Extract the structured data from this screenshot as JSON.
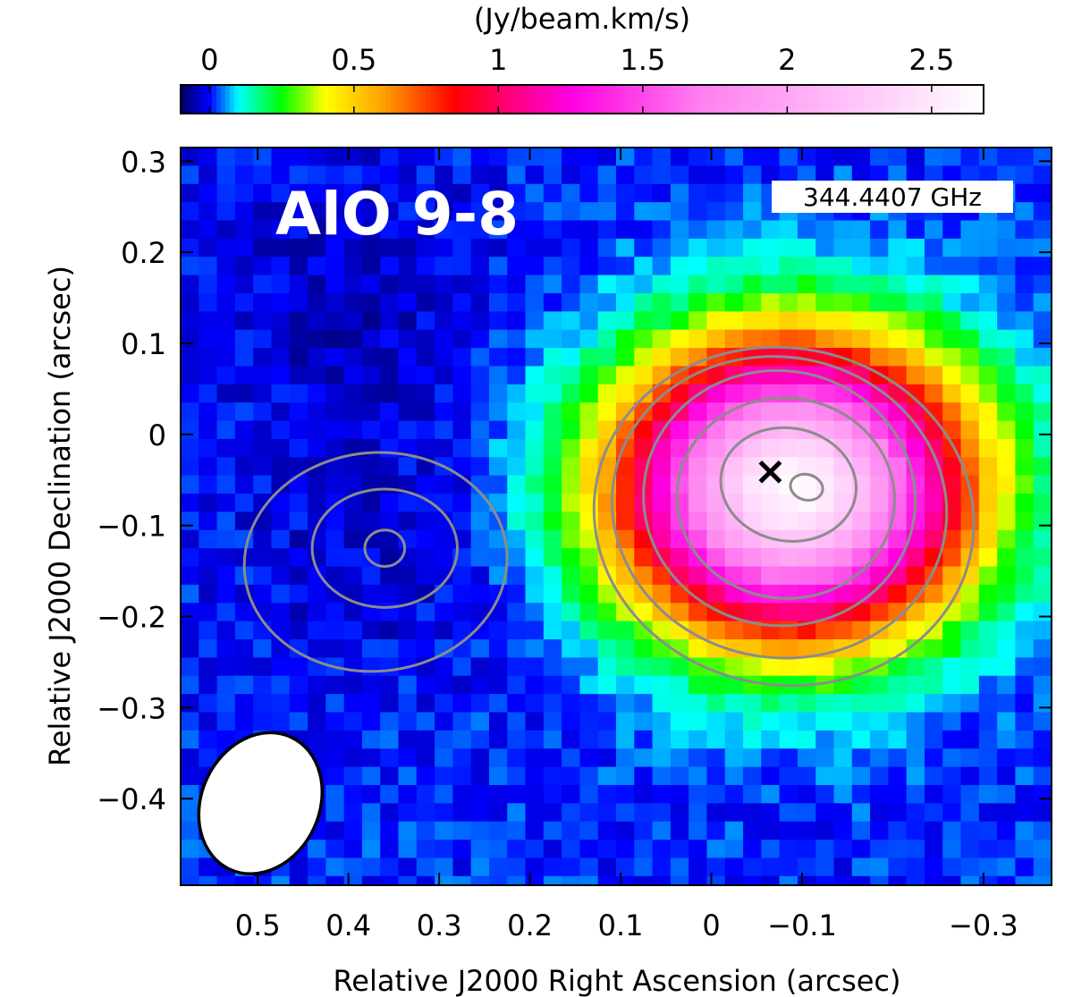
{
  "chart_data": {
    "type": "heatmap",
    "title": "AlO 9-8",
    "frequency_label": "344.4407 GHz",
    "xlabel": "Relative J2000 Right Ascension (arcsec)",
    "ylabel": "Relative J2000 Declination (arcsec)",
    "xlim": [
      0.585,
      -0.375
    ],
    "ylim": [
      -0.495,
      0.315
    ],
    "xticks": [
      0.5,
      0.4,
      0.3,
      0.2,
      0.1,
      0,
      -0.1,
      -0.3
    ],
    "xtick_labels": [
      "0.5",
      "0.4",
      "0.3",
      "0.2",
      "0.1",
      "0",
      "−0.1",
      "−0.3"
    ],
    "yticks": [
      0.3,
      0.2,
      0.1,
      0,
      -0.1,
      -0.2,
      -0.3,
      -0.4
    ],
    "ytick_labels": [
      "0.3",
      "0.2",
      "0.1",
      "0",
      "−0.1",
      "−0.2",
      "−0.3",
      "−0.4"
    ],
    "colorbar": {
      "label": "(Jy/beam.km/s)",
      "range": [
        -0.1,
        2.68
      ],
      "ticks": [
        0,
        0.5,
        1,
        1.5,
        2,
        2.5
      ],
      "tick_labels": [
        "0",
        "0.5",
        "1",
        "1.5",
        "2",
        "2.5"
      ],
      "colormap": [
        {
          "value": -0.1,
          "color": "#000060"
        },
        {
          "value": 0,
          "color": "#0000ff"
        },
        {
          "value": 0.1,
          "color": "#00ffff"
        },
        {
          "value": 0.25,
          "color": "#00ff00"
        },
        {
          "value": 0.4,
          "color": "#ffff00"
        },
        {
          "value": 0.6,
          "color": "#ffa000"
        },
        {
          "value": 0.85,
          "color": "#ff0000"
        },
        {
          "value": 1.05,
          "color": "#ff0080"
        },
        {
          "value": 1.25,
          "color": "#ff00e0"
        },
        {
          "value": 1.7,
          "color": "#ff80f0"
        },
        {
          "value": 2.2,
          "color": "#ffc0f8"
        },
        {
          "value": 2.68,
          "color": "#ffffff"
        }
      ]
    },
    "emission_peak": {
      "ra": -0.09,
      "dec": -0.06,
      "value": 2.6,
      "sigma_ra": 0.12,
      "sigma_dec": 0.1
    },
    "secondary_contours": {
      "ra": 0.36,
      "dec": -0.13
    },
    "marker": {
      "symbol": "×",
      "ra": -0.065,
      "dec": -0.04
    },
    "beam": {
      "ra": 0.497,
      "dec": -0.405,
      "major_arcsec": 0.16,
      "minor_arcsec": 0.13,
      "pa_deg": 25
    },
    "contours": [
      {
        "ra": -0.105,
        "dec": -0.058,
        "a": 0.018,
        "b": 0.014,
        "angle": 15
      },
      {
        "ra": -0.085,
        "dec": -0.055,
        "a": 0.075,
        "b": 0.062,
        "angle": 10
      },
      {
        "ra": -0.082,
        "dec": -0.07,
        "a": 0.12,
        "b": 0.11,
        "angle": 5
      },
      {
        "ra": -0.075,
        "dec": -0.07,
        "a": 0.15,
        "b": 0.14,
        "angle": 8
      },
      {
        "ra": -0.075,
        "dec": -0.08,
        "a": 0.185,
        "b": 0.165,
        "angle": 10
      },
      {
        "ra": -0.08,
        "dec": -0.09,
        "a": 0.21,
        "b": 0.185,
        "angle": 10
      },
      {
        "ra": 0.36,
        "dec": -0.125,
        "a": 0.022,
        "b": 0.02,
        "angle": 0
      },
      {
        "ra": 0.36,
        "dec": -0.125,
        "a": 0.08,
        "b": 0.065,
        "angle": 0
      },
      {
        "ra": 0.37,
        "dec": -0.14,
        "a": 0.145,
        "b": 0.12,
        "angle": -5
      }
    ]
  },
  "colors": {
    "contour": "#8c8c8c",
    "background": "#ffffff",
    "frame": "#000000",
    "title": "#ffffff",
    "marker": "#000000"
  }
}
